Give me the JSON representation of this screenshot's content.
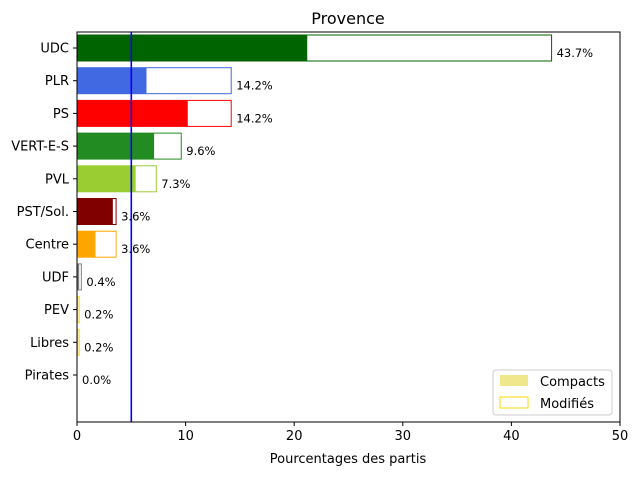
{
  "chart_data": {
    "type": "bar",
    "orientation": "horizontal",
    "title": "Provence",
    "xlabel": "Pourcentages des partis",
    "ylabel": "",
    "xlim": [
      0,
      50
    ],
    "xticks": [
      0,
      10,
      20,
      30,
      40,
      50
    ],
    "threshold": 5,
    "threshold_color": "#0000ff",
    "categories": [
      "UDC",
      "PLR",
      "PS",
      "VERT-E-S",
      "PVL",
      "PST/Sol.",
      "Centre",
      "UDF",
      "PEV",
      "Libres",
      "Pirates"
    ],
    "colors": [
      "#006400",
      "#4169e1",
      "#ff0000",
      "#228b22",
      "#9acd32",
      "#800000",
      "#ffa500",
      "#808080",
      "#ffd700",
      "#ffd700",
      "#800080"
    ],
    "series": [
      {
        "name": "Compacts",
        "values": [
          21.2,
          6.4,
          10.2,
          7.1,
          5.4,
          3.3,
          1.7,
          0.2,
          0.1,
          0.1,
          0.0
        ]
      },
      {
        "name": "Modifiés",
        "values": [
          43.7,
          14.2,
          14.2,
          9.6,
          7.3,
          3.6,
          3.6,
          0.4,
          0.2,
          0.2,
          0.0
        ]
      }
    ],
    "data_labels": [
      "43.7%",
      "14.2%",
      "14.2%",
      "9.6%",
      "7.3%",
      "3.6%",
      "3.6%",
      "0.4%",
      "0.2%",
      "0.2%",
      "0.0%"
    ],
    "legend": {
      "position": "lower-right",
      "entries": [
        "Compacts",
        "Modifiés"
      ],
      "compact_swatch_color": "#f0e68c",
      "modified_swatch_color": "#ffd700"
    }
  }
}
